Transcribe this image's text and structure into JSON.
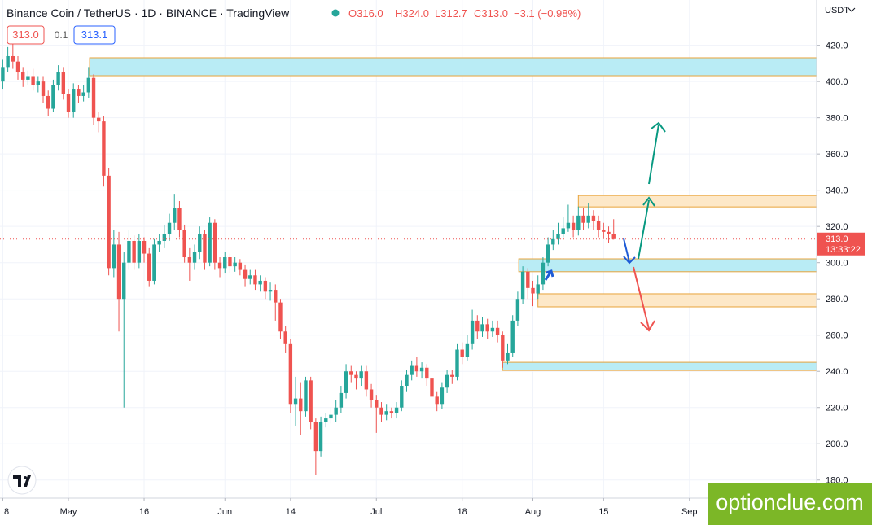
{
  "chart_data": {
    "type": "candlestick",
    "title": "Binance Coin / TetherUS · 1D · BINANCE · TradingView",
    "legend_ohlc": [
      "O316.0",
      "H324.0",
      "L312.7",
      "C313.0",
      "−3.1 (−0.98%)"
    ],
    "quote": {
      "bid": "313.0",
      "spread": "0.1",
      "ask": "313.1"
    },
    "currency": "USDT",
    "watermark": "optionclue.com",
    "up_color": "#26a69a",
    "down_color": "#ef5350",
    "categories": [
      null,
      null,
      null,
      null,
      null,
      null,
      null,
      null,
      null,
      null,
      null,
      null,
      null,
      null,
      null,
      null,
      null,
      null,
      null,
      null,
      null,
      null,
      null,
      null,
      null,
      null,
      null,
      null,
      null,
      null,
      null,
      null,
      null,
      null,
      null,
      null,
      null,
      null,
      null,
      null,
      null,
      null,
      null,
      null,
      null,
      null,
      null,
      null,
      null,
      null,
      null,
      null,
      null,
      null,
      null,
      null,
      null,
      null,
      null,
      null,
      null,
      null,
      null,
      null,
      null,
      null,
      null,
      null,
      null,
      null,
      null,
      null,
      null,
      null,
      null,
      null,
      null,
      null,
      null,
      null,
      null,
      null,
      null,
      null,
      null,
      null,
      null,
      null,
      null,
      null,
      null,
      null,
      null,
      null,
      null,
      null,
      null,
      null,
      null,
      null,
      null,
      null,
      null,
      null,
      null,
      null,
      null,
      null,
      null,
      null,
      null,
      null,
      null,
      null,
      null,
      null,
      null,
      null,
      null,
      null,
      null,
      null
    ],
    "open": [
      400,
      408,
      414,
      411,
      405,
      401,
      403,
      398,
      400,
      392,
      385,
      398,
      405,
      393,
      383,
      396,
      392,
      394,
      402,
      380,
      378,
      348,
      297,
      310,
      280,
      300,
      312,
      300,
      312,
      305,
      290,
      310,
      312,
      316,
      322,
      330,
      318,
      303,
      300,
      306,
      316,
      300,
      322,
      300,
      297,
      303,
      298,
      300,
      296,
      291,
      293,
      288,
      290,
      284,
      285,
      278,
      262,
      255,
      222,
      225,
      218,
      235,
      212,
      196,
      212,
      214,
      216,
      220,
      228,
      240,
      238,
      236,
      240,
      230,
      224,
      220,
      216,
      218,
      217,
      220,
      232,
      238,
      243,
      240,
      242,
      236,
      226,
      222,
      231,
      238,
      237,
      252,
      248,
      255,
      268,
      262,
      266,
      262,
      264,
      260,
      246,
      250,
      268,
      280,
      295,
      286,
      283,
      288,
      300,
      310,
      313,
      316,
      319,
      322,
      318,
      326,
      322,
      326,
      323,
      318,
      317,
      316
    ],
    "high": [
      412,
      419,
      421,
      414,
      408,
      406,
      407,
      403,
      403,
      395,
      401,
      409,
      408,
      396,
      399,
      398,
      398,
      408,
      404,
      383,
      381,
      352,
      318,
      317,
      306,
      318,
      315,
      316,
      314,
      308,
      313,
      316,
      321,
      327,
      338,
      334,
      321,
      308,
      310,
      320,
      318,
      325,
      324,
      303,
      306,
      305,
      303,
      302,
      299,
      296,
      296,
      293,
      292,
      289,
      288,
      280,
      265,
      258,
      237,
      234,
      237,
      237,
      214,
      215,
      217,
      220,
      224,
      232,
      244,
      243,
      240,
      243,
      243,
      233,
      227,
      223,
      222,
      220,
      223,
      235,
      241,
      246,
      248,
      245,
      244,
      238,
      229,
      234,
      241,
      241,
      255,
      256,
      260,
      274,
      271,
      270,
      269,
      268,
      268,
      262,
      255,
      271,
      284,
      298,
      297,
      290,
      293,
      303,
      314,
      318,
      322,
      325,
      332,
      326,
      331,
      330,
      333,
      329,
      326,
      322,
      320,
      324
    ],
    "low": [
      396,
      405,
      407,
      401,
      397,
      398,
      395,
      394,
      388,
      381,
      383,
      395,
      390,
      380,
      380,
      388,
      389,
      391,
      376,
      372,
      342,
      293,
      292,
      262,
      220,
      296,
      296,
      297,
      300,
      287,
      288,
      306,
      308,
      312,
      318,
      314,
      300,
      290,
      296,
      302,
      296,
      298,
      296,
      292,
      294,
      294,
      295,
      293,
      287,
      288,
      285,
      284,
      280,
      279,
      268,
      258,
      250,
      217,
      210,
      205,
      215,
      208,
      183,
      193,
      209,
      211,
      212,
      217,
      225,
      234,
      230,
      232,
      226,
      220,
      206,
      212,
      213,
      214,
      214,
      218,
      229,
      235,
      237,
      236,
      232,
      222,
      218,
      219,
      228,
      233,
      235,
      244,
      246,
      252,
      258,
      259,
      258,
      259,
      256,
      242,
      244,
      248,
      265,
      277,
      280,
      276,
      280,
      285,
      298,
      307,
      310,
      314,
      317,
      314,
      315,
      318,
      319,
      318,
      314,
      313,
      311,
      312.7
    ],
    "close": [
      408,
      414,
      411,
      405,
      401,
      403,
      398,
      400,
      392,
      385,
      398,
      405,
      393,
      383,
      396,
      392,
      394,
      402,
      380,
      378,
      348,
      297,
      310,
      280,
      300,
      312,
      300,
      312,
      305,
      290,
      310,
      312,
      316,
      322,
      330,
      318,
      303,
      300,
      306,
      316,
      300,
      322,
      300,
      297,
      303,
      298,
      300,
      296,
      291,
      293,
      288,
      290,
      284,
      285,
      278,
      262,
      255,
      222,
      225,
      218,
      235,
      212,
      196,
      212,
      214,
      216,
      220,
      228,
      240,
      238,
      236,
      240,
      230,
      224,
      220,
      216,
      218,
      217,
      220,
      232,
      238,
      243,
      240,
      242,
      236,
      226,
      222,
      231,
      238,
      237,
      252,
      248,
      255,
      268,
      262,
      266,
      262,
      264,
      260,
      246,
      250,
      268,
      280,
      295,
      286,
      283,
      288,
      300,
      310,
      313,
      316,
      319,
      322,
      318,
      326,
      322,
      326,
      323,
      318,
      317,
      316,
      313
    ],
    "xlim": [
      -0.55,
      161.2
    ],
    "xticks": [
      {
        "value": 0,
        "label": "8"
      },
      {
        "value": 13,
        "label": "May"
      },
      {
        "value": 28,
        "label": "16"
      },
      {
        "value": 44,
        "label": "Jun"
      },
      {
        "value": 57,
        "label": "14"
      },
      {
        "value": 74,
        "label": "Jul"
      },
      {
        "value": 91,
        "label": "18"
      },
      {
        "value": 105,
        "label": "Aug"
      },
      {
        "value": 119,
        "label": "15"
      },
      {
        "value": 136,
        "label": "Sep"
      }
    ],
    "ylim": [
      170,
      445
    ],
    "yticks": [
      {
        "value": 180,
        "label": "180.0"
      },
      {
        "value": 200,
        "label": "200.0"
      },
      {
        "value": 220,
        "label": "220.0"
      },
      {
        "value": 240,
        "label": "240.0"
      },
      {
        "value": 260,
        "label": "260.0"
      },
      {
        "value": 280,
        "label": "280.0"
      },
      {
        "value": 300,
        "label": "300.0"
      },
      {
        "value": 320,
        "label": "320.0"
      },
      {
        "value": 340,
        "label": "340.0"
      },
      {
        "value": 360,
        "label": "360.0"
      },
      {
        "value": 380,
        "label": "380.0"
      },
      {
        "value": 400,
        "label": "400.0"
      },
      {
        "value": 420,
        "label": "420.0"
      }
    ],
    "grid": true,
    "last_price": {
      "value": 313,
      "label": "313.0"
    },
    "countdown": "13:33:22",
    "zones": [
      {
        "start": 17.2,
        "top": 413.1,
        "bottom": 403.2,
        "color": "#b9ecf5"
      },
      {
        "start": 114,
        "top": 337.1,
        "bottom": 330.8,
        "color": "#fde8c8"
      },
      {
        "start": 102.2,
        "top": 302.1,
        "bottom": 295.0,
        "color": "#b9ecf5"
      },
      {
        "start": 106,
        "top": 282.8,
        "bottom": 275.6,
        "color": "#fde8c8"
      },
      {
        "start": 99,
        "top": 245.0,
        "bottom": 240.5,
        "color": "#b9ecf5"
      }
    ]
  }
}
